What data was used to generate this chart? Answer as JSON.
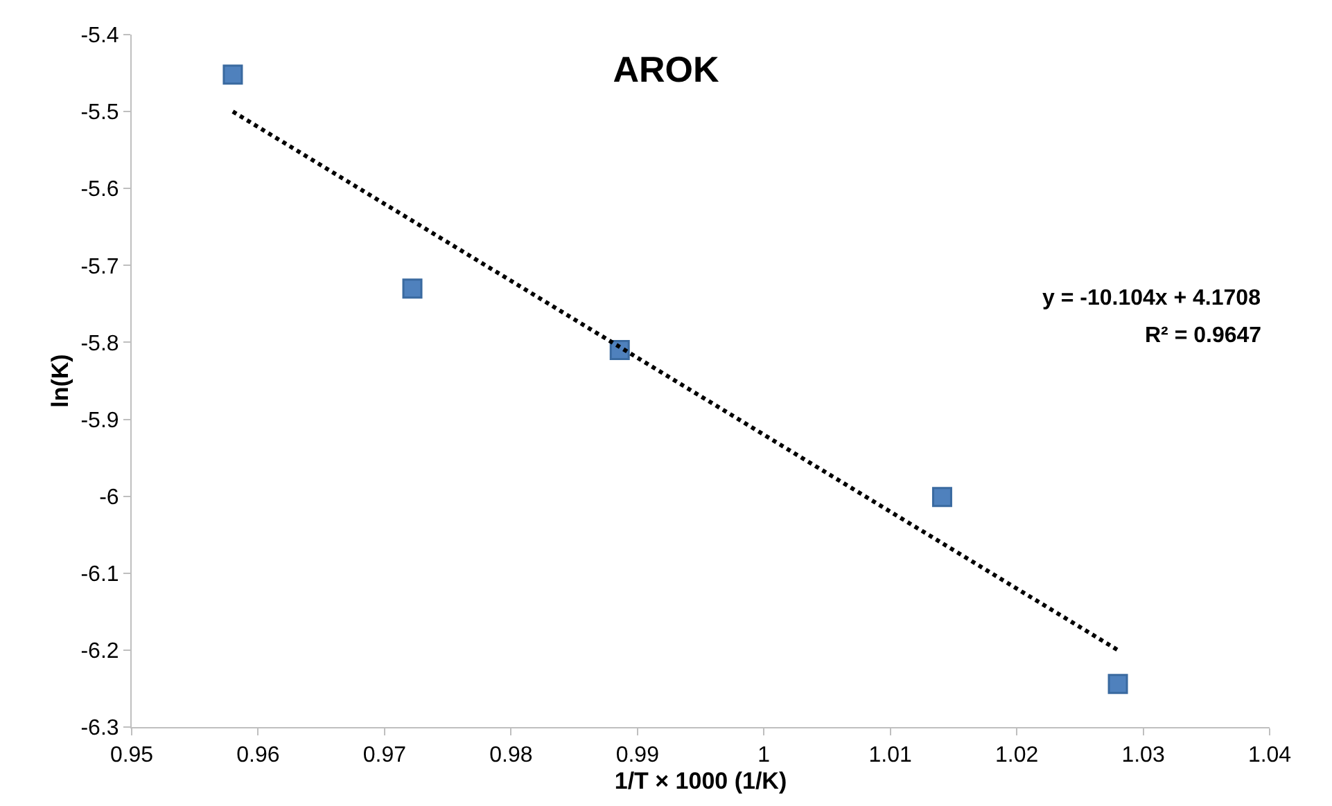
{
  "chart_data": {
    "type": "scatter",
    "title": "AROK",
    "xlabel": "1/T × 1000 (1/K)",
    "ylabel": "ln(K)",
    "annotations": [
      "y = -10.104x + 4.1708",
      "R² = 0.9647"
    ],
    "xlim": [
      0.95,
      1.04
    ],
    "xticks": [
      0.95,
      0.96,
      0.97,
      0.98,
      0.99,
      1,
      1.01,
      1.02,
      1.03,
      1.04
    ],
    "ylim": [
      -6.3,
      -5.4
    ],
    "yticks": [
      -6.3,
      -6.2,
      -6.1,
      -6,
      -5.9,
      -5.8,
      -5.7,
      -5.6,
      -5.5,
      -5.4
    ],
    "grid": false,
    "marker": "square",
    "series": [
      {
        "color": "#4f81bd",
        "x": [
          0.958,
          0.9722,
          0.9886,
          1.0141,
          1.028
        ],
        "values": [
          -5.452,
          -5.73,
          -5.81,
          -6.001,
          -6.244
        ]
      },
      {
        "type": "line",
        "line_style": "dotted",
        "marker": "none",
        "color": "#000000",
        "x": [
          0.958,
          1.028
        ],
        "values": [
          -5.5,
          -6.2
        ]
      }
    ]
  }
}
